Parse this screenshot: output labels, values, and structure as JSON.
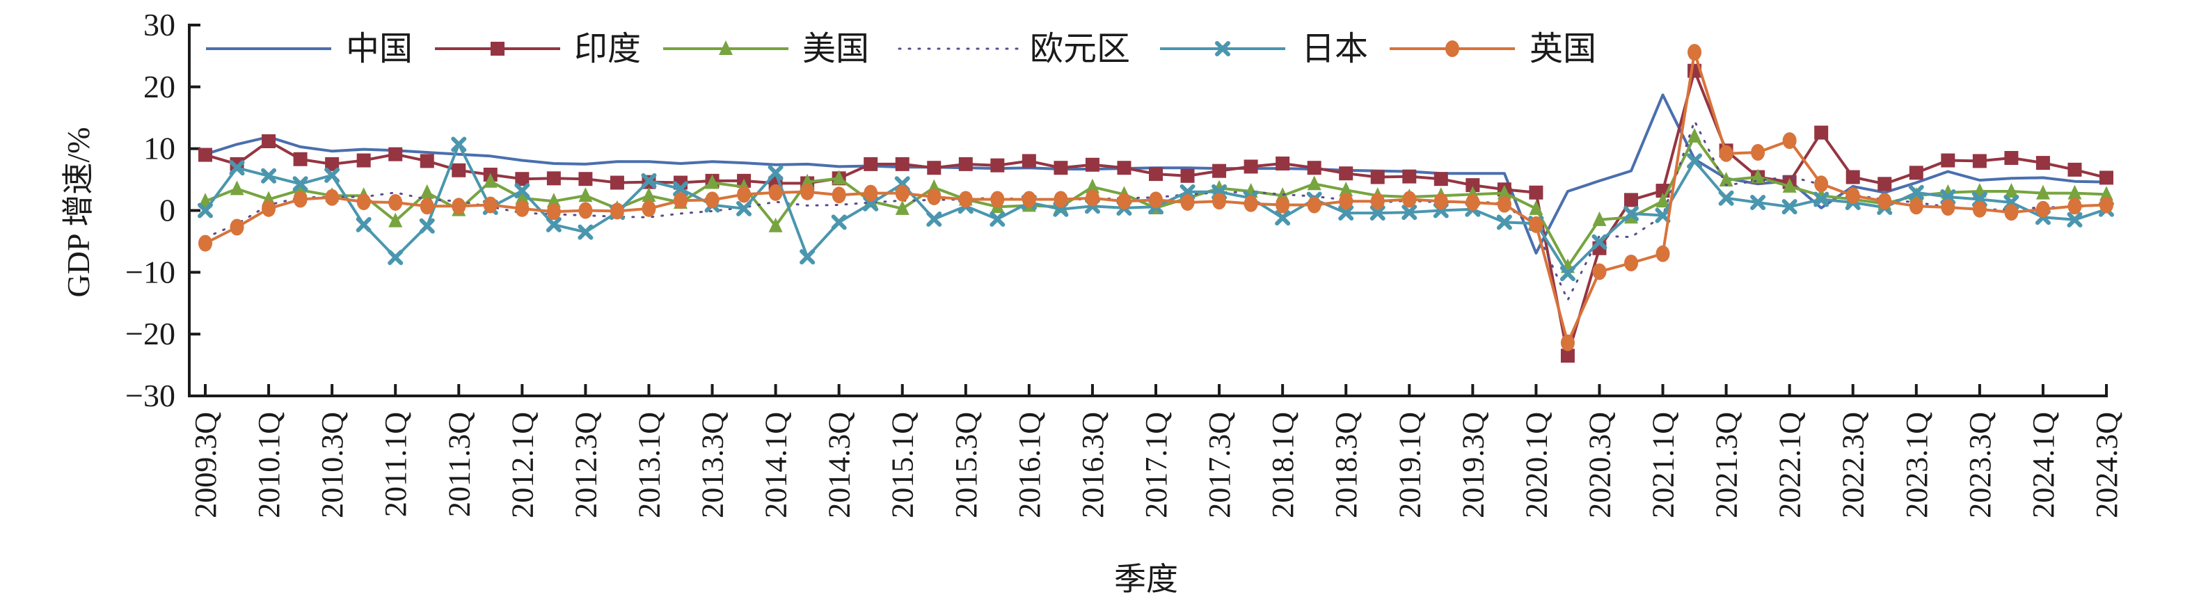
{
  "chart_data": {
    "type": "line",
    "title": "",
    "xlabel": "季度",
    "ylabel": "GDP 增速/%",
    "ylim": [
      -30,
      30
    ],
    "yticks": [
      30,
      20,
      10,
      0,
      -10,
      -20,
      -30
    ],
    "ytick_labels": [
      "30",
      "20",
      "10",
      "0",
      "−10",
      "−20",
      "−30"
    ],
    "grid": false,
    "legend_position": "top-inside",
    "x": [
      "2009.3Q",
      "2009.4Q",
      "2010.1Q",
      "2010.2Q",
      "2010.3Q",
      "2010.4Q",
      "2011.1Q",
      "2011.2Q",
      "2011.3Q",
      "2011.4Q",
      "2012.1Q",
      "2012.2Q",
      "2012.3Q",
      "2012.4Q",
      "2013.1Q",
      "2013.2Q",
      "2013.3Q",
      "2013.4Q",
      "2014.1Q",
      "2014.2Q",
      "2014.3Q",
      "2014.4Q",
      "2015.1Q",
      "2015.2Q",
      "2015.3Q",
      "2015.4Q",
      "2016.1Q",
      "2016.2Q",
      "2016.3Q",
      "2016.4Q",
      "2017.1Q",
      "2017.2Q",
      "2017.3Q",
      "2017.4Q",
      "2018.1Q",
      "2018.2Q",
      "2018.3Q",
      "2018.4Q",
      "2019.1Q",
      "2019.2Q",
      "2019.3Q",
      "2019.4Q",
      "2020.1Q",
      "2020.2Q",
      "2020.3Q",
      "2020.4Q",
      "2021.1Q",
      "2021.2Q",
      "2021.3Q",
      "2021.4Q",
      "2022.1Q",
      "2022.2Q",
      "2022.3Q",
      "2022.4Q",
      "2023.1Q",
      "2023.2Q",
      "2023.3Q",
      "2023.4Q",
      "2024.1Q",
      "2024.2Q",
      "2024.3Q"
    ],
    "xtick_labels": [
      "2009.3Q",
      "2010.1Q",
      "2010.3Q",
      "2011.1Q",
      "2011.3Q",
      "2012.1Q",
      "2012.3Q",
      "2013.1Q",
      "2013.3Q",
      "2014.1Q",
      "2014.3Q",
      "2015.1Q",
      "2015.3Q",
      "2016.1Q",
      "2016.3Q",
      "2017.1Q",
      "2017.3Q",
      "2018.1Q",
      "2018.3Q",
      "2019.1Q",
      "2019.3Q",
      "2020.1Q",
      "2020.3Q",
      "2021.1Q",
      "2021.3Q",
      "2022.1Q",
      "2022.3Q",
      "2023.1Q",
      "2023.3Q",
      "2024.1Q",
      "2024.3Q"
    ],
    "series": [
      {
        "name": "中国",
        "color": "#4a6fae",
        "marker": "none",
        "dash": "solid",
        "values": [
          9.1,
          10.7,
          11.9,
          10.3,
          9.6,
          9.9,
          9.7,
          9.4,
          9.1,
          8.8,
          8.1,
          7.6,
          7.5,
          7.9,
          7.9,
          7.6,
          7.9,
          7.7,
          7.4,
          7.5,
          7.1,
          7.2,
          7.0,
          7.0,
          6.9,
          6.8,
          6.9,
          6.7,
          6.7,
          6.8,
          6.9,
          6.9,
          6.8,
          6.8,
          6.8,
          6.7,
          6.5,
          6.4,
          6.3,
          6.0,
          6.0,
          6.0,
          -6.9,
          3.1,
          4.8,
          6.4,
          18.7,
          8.3,
          5.2,
          4.3,
          4.8,
          0.4,
          3.9,
          2.9,
          4.5,
          6.3,
          4.9,
          5.2,
          5.3,
          4.7,
          4.6
        ]
      },
      {
        "name": "印度",
        "color": "#953542",
        "marker": "square",
        "dash": "solid",
        "values": [
          9.0,
          7.5,
          11.2,
          8.3,
          7.5,
          8.1,
          9.1,
          8.0,
          6.5,
          5.8,
          5.1,
          5.2,
          5.1,
          4.5,
          4.6,
          4.5,
          4.8,
          4.8,
          4.4,
          4.4,
          5.2,
          7.5,
          7.5,
          6.9,
          7.5,
          7.3,
          8.0,
          6.9,
          7.4,
          6.9,
          5.9,
          5.6,
          6.4,
          7.1,
          7.6,
          6.9,
          6.0,
          5.4,
          5.5,
          5.1,
          4.1,
          3.4,
          2.9,
          -23.5,
          -6.1,
          1.7,
          3.2,
          22.6,
          9.7,
          5.4,
          4.6,
          12.6,
          5.4,
          4.3,
          6.1,
          8.1,
          8.0,
          8.5,
          7.7,
          6.6,
          5.3
        ]
      },
      {
        "name": "美国",
        "color": "#77a43f",
        "marker": "triangle",
        "dash": "solid",
        "values": [
          1.5,
          3.5,
          1.8,
          3.3,
          2.4,
          2.4,
          -1.7,
          2.9,
          0.1,
          4.7,
          2.0,
          1.5,
          2.4,
          0.3,
          2.4,
          1.3,
          4.5,
          3.8,
          -2.5,
          4.6,
          5.2,
          1.5,
          0.3,
          3.7,
          1.8,
          0.6,
          0.8,
          0.6,
          3.8,
          2.6,
          0.4,
          2.0,
          3.6,
          3.1,
          2.4,
          4.3,
          3.3,
          2.4,
          2.2,
          2.4,
          2.6,
          2.8,
          0.3,
          -9.1,
          -1.5,
          -1.1,
          1.5,
          12.0,
          4.9,
          5.4,
          3.9,
          2.4,
          1.8,
          1.1,
          2.4,
          2.9,
          3.1,
          3.1,
          2.8,
          2.8,
          2.6
        ]
      },
      {
        "name": "欧元区",
        "color": "#5a4b8c",
        "marker": "none",
        "dash": "dotted",
        "values": [
          -4.4,
          -2.2,
          0.9,
          2.1,
          2.2,
          2.2,
          2.9,
          1.8,
          1.5,
          0.6,
          -0.4,
          -0.6,
          -0.8,
          -1.0,
          -1.1,
          -0.5,
          -0.1,
          0.5,
          1.4,
          0.8,
          0.9,
          1.3,
          1.6,
          1.7,
          1.8,
          2.1,
          1.7,
          1.8,
          1.8,
          2.0,
          2.1,
          2.6,
          2.9,
          3.0,
          2.6,
          2.3,
          1.7,
          1.3,
          1.6,
          1.3,
          1.5,
          1.1,
          -3.1,
          -14.5,
          -4.1,
          -4.3,
          -0.9,
          14.5,
          4.1,
          4.8,
          5.5,
          4.2,
          2.5,
          1.8,
          1.3,
          0.6,
          0.1,
          0.2,
          0.5,
          0.6,
          0.9
        ]
      },
      {
        "name": "日本",
        "color": "#4a96ae",
        "marker": "x",
        "dash": "solid",
        "values": [
          0.0,
          6.9,
          5.6,
          4.3,
          5.7,
          -2.3,
          -7.6,
          -2.5,
          10.7,
          0.5,
          3.2,
          -2.3,
          -3.5,
          -0.3,
          4.8,
          3.5,
          0.9,
          0.3,
          6.1,
          -7.5,
          -1.9,
          1.1,
          4.3,
          -1.4,
          0.7,
          -1.4,
          1.3,
          0.2,
          0.7,
          0.4,
          0.6,
          3.0,
          3.0,
          2.0,
          -1.2,
          1.8,
          -0.4,
          -0.4,
          -0.3,
          0.0,
          0.2,
          -1.9,
          -2.1,
          -10.2,
          -5.1,
          -0.5,
          -0.8,
          8.0,
          2.0,
          1.3,
          0.6,
          1.8,
          1.3,
          0.5,
          2.9,
          2.2,
          1.8,
          1.3,
          -1.1,
          -1.5,
          0.2
        ]
      },
      {
        "name": "英国",
        "color": "#d8733a",
        "marker": "circle",
        "dash": "solid",
        "values": [
          -5.3,
          -2.7,
          0.3,
          1.8,
          2.1,
          1.4,
          1.3,
          0.7,
          0.7,
          0.9,
          0.3,
          -0.2,
          0.0,
          -0.1,
          0.3,
          1.6,
          1.7,
          2.6,
          2.9,
          3.0,
          2.5,
          2.8,
          2.8,
          2.2,
          1.8,
          1.8,
          1.8,
          1.8,
          2.0,
          1.5,
          1.7,
          1.3,
          1.5,
          1.1,
          0.9,
          0.9,
          1.5,
          1.5,
          1.8,
          1.5,
          1.3,
          1.0,
          -2.3,
          -21.4,
          -9.9,
          -8.5,
          -7.0,
          25.6,
          9.2,
          9.4,
          11.3,
          4.3,
          2.4,
          1.5,
          0.7,
          0.5,
          0.2,
          -0.3,
          0.2,
          0.7,
          0.9
        ]
      }
    ]
  },
  "axes": {
    "y_title": "GDP 增速/%",
    "x_title": "季度"
  },
  "legend": {
    "items": [
      "中国",
      "印度",
      "美国",
      "欧元区",
      "日本",
      "英国"
    ]
  }
}
